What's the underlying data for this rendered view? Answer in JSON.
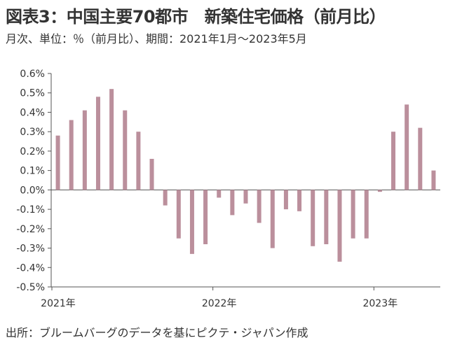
{
  "header": {
    "title": "図表3：中国主要70都市　新築住宅価格（前月比）",
    "subtitle": "月次、単位：％（前月比）、期間：2021年1月～2023年5月"
  },
  "footer": {
    "source": "出所：ブルームバーグのデータを基にピクテ・ジャパン作成"
  },
  "colors": {
    "bar": "#bb8f9c",
    "axis": "#555555",
    "grid": "#d9d9d9"
  },
  "chart_data": {
    "type": "bar",
    "ylim": [
      -0.5,
      0.6
    ],
    "yticks": [
      0.6,
      0.5,
      0.4,
      0.3,
      0.2,
      0.1,
      0.0,
      -0.1,
      -0.2,
      -0.3,
      -0.4,
      -0.5
    ],
    "ytick_labels": [
      "0.6%",
      "0.5%",
      "0.4%",
      "0.3%",
      "0.2%",
      "0.1%",
      "0.0%",
      "-0.1%",
      "-0.2%",
      "-0.3%",
      "-0.4%",
      "-0.5%"
    ],
    "x_labels": [
      {
        "label": "2021年",
        "index": 0
      },
      {
        "label": "2022年",
        "index": 12
      },
      {
        "label": "2023年",
        "index": 24
      }
    ],
    "categories": [
      "2021-01",
      "2021-02",
      "2021-03",
      "2021-04",
      "2021-05",
      "2021-06",
      "2021-07",
      "2021-08",
      "2021-09",
      "2021-10",
      "2021-11",
      "2021-12",
      "2022-01",
      "2022-02",
      "2022-03",
      "2022-04",
      "2022-05",
      "2022-06",
      "2022-07",
      "2022-08",
      "2022-09",
      "2022-10",
      "2022-11",
      "2022-12",
      "2023-01",
      "2023-02",
      "2023-03",
      "2023-04",
      "2023-05"
    ],
    "values": [
      0.28,
      0.36,
      0.41,
      0.48,
      0.52,
      0.41,
      0.3,
      0.16,
      -0.08,
      -0.25,
      -0.33,
      -0.28,
      -0.04,
      -0.13,
      -0.07,
      -0.17,
      -0.3,
      -0.1,
      -0.11,
      -0.29,
      -0.28,
      -0.37,
      -0.25,
      -0.25,
      -0.01,
      0.3,
      0.44,
      0.32,
      0.1
    ],
    "grid": false,
    "legend": "none"
  }
}
